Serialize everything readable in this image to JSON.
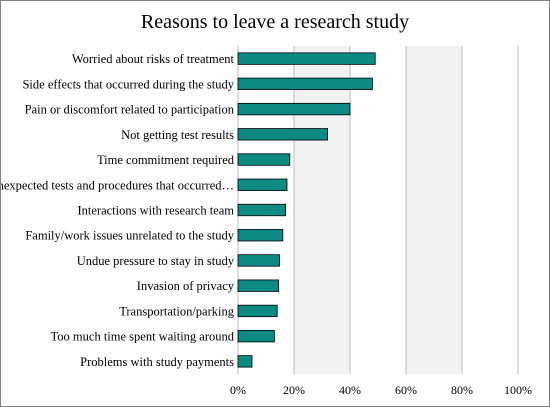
{
  "chart_data": {
    "type": "bar",
    "orientation": "horizontal",
    "title": "Reasons to leave a research study",
    "xlabel": "",
    "ylabel": "",
    "xlim": [
      0,
      1
    ],
    "x_ticks": [
      0,
      0.2,
      0.4,
      0.6,
      0.8,
      1.0
    ],
    "x_tick_labels": [
      "0%",
      "20%",
      "40%",
      "60%",
      "80%",
      "100%"
    ],
    "grid": "vertical",
    "legend": "none",
    "categories": [
      "Worried about risks of treatment",
      "Side effects that occurred during the study",
      "Pain or discomfort related to participation",
      "Not getting test results",
      "Time commitment required",
      "Unexpected tests and procedures that occurred…",
      "Interactions with research team",
      "Family/work issues unrelated to the study",
      "Undue pressure to stay in study",
      "Invasion of privacy",
      "Transportation/parking",
      "Too much time spent waiting around",
      "Problems with study payments"
    ],
    "values": [
      0.49,
      0.48,
      0.4,
      0.32,
      0.185,
      0.175,
      0.17,
      0.16,
      0.148,
      0.145,
      0.14,
      0.13,
      0.05
    ],
    "colors": {
      "bar": "#0e8a85",
      "bar_edge": "#000000",
      "grid": "#bfbfbf",
      "plot_background": "#f2f2f2"
    }
  }
}
